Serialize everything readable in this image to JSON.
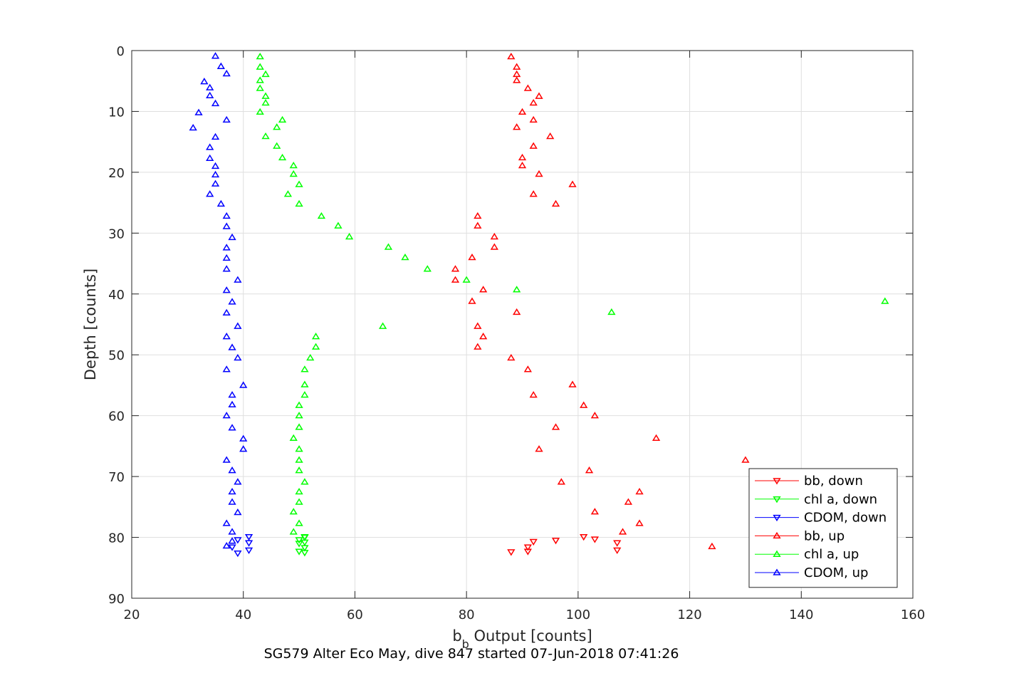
{
  "chart_data": {
    "type": "scatter",
    "xlabel": "b",
    "xlabel_sub": "b",
    "xlabel_rest": " Output [counts]",
    "ylabel": "Depth [counts]",
    "caption": "SG579 Alter Eco May, dive 847 started 07-Jun-2018 07:41:26",
    "xlim": [
      20,
      160
    ],
    "ylim": [
      0,
      90
    ],
    "y_reversed": true,
    "grid": true,
    "xticks": [
      20,
      40,
      60,
      80,
      100,
      120,
      140,
      160
    ],
    "yticks": [
      0,
      10,
      20,
      30,
      40,
      50,
      60,
      70,
      80,
      90
    ],
    "legend_position": "bottom-right",
    "series": [
      {
        "name": "bb, down",
        "color": "#ff0000",
        "marker": "triangle-down",
        "x": [
          88,
          91,
          92,
          96,
          101,
          103,
          107,
          107,
          91
        ],
        "y": [
          82.4,
          81.6,
          80.7,
          80.5,
          79.9,
          80.3,
          80.9,
          82.1,
          82.3
        ]
      },
      {
        "name": "chl a, down",
        "color": "#00ff00",
        "marker": "triangle-down",
        "x": [
          50,
          51,
          51,
          50,
          51,
          50,
          51,
          51
        ],
        "y": [
          82.3,
          82.5,
          81.7,
          81.0,
          80.8,
          80.4,
          80.0,
          79.9
        ]
      },
      {
        "name": "CDOM, down",
        "color": "#0000ff",
        "marker": "triangle-down",
        "x": [
          39,
          41,
          41,
          41,
          39,
          38
        ],
        "y": [
          82.6,
          82.1,
          80.9,
          79.9,
          80.4,
          81.6
        ]
      },
      {
        "name": "bb, up",
        "color": "#ff0000",
        "marker": "triangle-up",
        "x": [
          88,
          89,
          89,
          89,
          91,
          93,
          92,
          90,
          92,
          89,
          95,
          92,
          90,
          90,
          93,
          99,
          92,
          96,
          82,
          82,
          85,
          85,
          81,
          78,
          78,
          83,
          81,
          89,
          82,
          83,
          82,
          88,
          91,
          99,
          92,
          101,
          103,
          96,
          114,
          93,
          130,
          102,
          97,
          111,
          109,
          103,
          111,
          108,
          124
        ],
        "y": [
          1.0,
          2.7,
          3.9,
          4.9,
          6.2,
          7.5,
          8.6,
          10.1,
          11.4,
          12.6,
          14.1,
          15.7,
          17.6,
          18.9,
          20.3,
          22.0,
          23.6,
          25.2,
          27.2,
          28.8,
          30.6,
          32.3,
          34.0,
          35.9,
          37.7,
          39.3,
          41.2,
          43.0,
          45.3,
          47.0,
          48.7,
          50.5,
          52.4,
          54.9,
          56.6,
          58.3,
          60.0,
          61.9,
          63.7,
          65.5,
          67.3,
          69.0,
          70.9,
          72.5,
          74.2,
          75.8,
          77.7,
          79.1,
          81.5
        ]
      },
      {
        "name": "chl a, up",
        "color": "#00ff00",
        "marker": "triangle-up",
        "x": [
          43,
          43,
          44,
          43,
          43,
          44,
          44,
          43,
          47,
          46,
          44,
          46,
          47,
          49,
          49,
          50,
          48,
          50,
          54,
          57,
          59,
          66,
          69,
          73,
          80,
          89,
          155,
          106,
          65,
          53,
          53,
          52,
          51,
          51,
          51,
          50,
          50,
          50,
          49,
          50,
          50,
          50,
          51,
          50,
          50,
          49,
          50,
          49
        ],
        "y": [
          1.0,
          2.7,
          3.9,
          4.9,
          6.2,
          7.5,
          8.6,
          10.1,
          11.4,
          12.6,
          14.1,
          15.7,
          17.6,
          18.9,
          20.3,
          22.0,
          23.6,
          25.2,
          27.2,
          28.8,
          30.6,
          32.3,
          34.0,
          35.9,
          37.7,
          39.3,
          41.2,
          43.0,
          45.3,
          47.0,
          48.7,
          50.5,
          52.4,
          54.9,
          56.6,
          58.3,
          60.0,
          61.9,
          63.7,
          65.5,
          67.3,
          69.0,
          70.9,
          72.5,
          74.2,
          75.8,
          77.7,
          79.1
        ]
      },
      {
        "name": "CDOM, up",
        "color": "#0000ff",
        "marker": "triangle-up",
        "x": [
          35,
          36,
          37,
          33,
          34,
          34,
          35,
          32,
          37,
          31,
          35,
          34,
          34,
          35,
          35,
          35,
          34,
          36,
          37,
          37,
          38,
          37,
          37,
          37,
          39,
          37,
          38,
          37,
          39,
          37,
          38,
          39,
          37,
          40,
          38,
          38,
          37,
          38,
          40,
          40,
          37,
          38,
          39,
          38,
          38,
          39,
          37,
          38,
          38,
          37
        ],
        "y": [
          0.9,
          2.6,
          3.8,
          5.1,
          6.1,
          7.4,
          8.7,
          10.2,
          11.4,
          12.7,
          14.2,
          15.9,
          17.7,
          19.0,
          20.4,
          21.9,
          23.6,
          25.2,
          27.2,
          28.9,
          30.7,
          32.4,
          34.1,
          35.9,
          37.7,
          39.4,
          41.3,
          43.1,
          45.3,
          47.0,
          48.8,
          50.5,
          52.4,
          55.0,
          56.6,
          58.2,
          60.0,
          62.0,
          63.8,
          65.5,
          67.3,
          69.0,
          70.9,
          72.5,
          74.2,
          75.9,
          77.7,
          79.1,
          80.6,
          81.4
        ]
      }
    ]
  }
}
